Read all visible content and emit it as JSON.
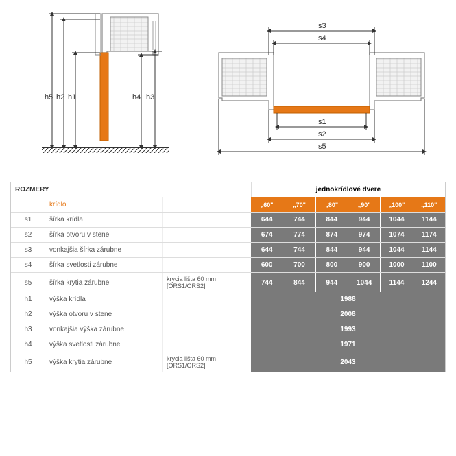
{
  "colors": {
    "accent": "#e67817",
    "darkcell": "#7a7a7a",
    "line": "#333333",
    "wall_fill": "#f2f2f2",
    "profile_stroke": "#888888"
  },
  "header": {
    "rozmery": "ROZMERY",
    "right": "jednokrídlové dvere",
    "kridlo": "krídlo"
  },
  "sizes": [
    "„60\"",
    "„70\"",
    "„80\"",
    "„90\"",
    "„100\"",
    "„110\""
  ],
  "rows_s": [
    {
      "id": "s1",
      "label": "šírka krídla",
      "note": "",
      "vals": [
        "644",
        "744",
        "844",
        "944",
        "1044",
        "1144"
      ]
    },
    {
      "id": "s2",
      "label": "šírka otvoru v stene",
      "note": "",
      "vals": [
        "674",
        "774",
        "874",
        "974",
        "1074",
        "1174"
      ]
    },
    {
      "id": "s3",
      "label": "vonkajšia šírka zárubne",
      "note": "",
      "vals": [
        "644",
        "744",
        "844",
        "944",
        "1044",
        "1144"
      ]
    },
    {
      "id": "s4",
      "label": "šírka svetlosti zárubne",
      "note": "",
      "vals": [
        "600",
        "700",
        "800",
        "900",
        "1000",
        "1100"
      ]
    },
    {
      "id": "s5",
      "label": "šírka krytia zárubne",
      "note": "krycia lišta 60 mm [ORS1/ORS2]",
      "vals": [
        "744",
        "844",
        "944",
        "1044",
        "1144",
        "1244"
      ]
    }
  ],
  "rows_h": [
    {
      "id": "h1",
      "label": "výška krídla",
      "note": "",
      "val": "1988"
    },
    {
      "id": "h2",
      "label": "výška otvoru v stene",
      "note": "",
      "val": "2008"
    },
    {
      "id": "h3",
      "label": "vonkajšia výška zárubne",
      "note": "",
      "val": "1993"
    },
    {
      "id": "h4",
      "label": "výška svetlosti zárubne",
      "note": "",
      "val": "1971"
    },
    {
      "id": "h5",
      "label": "výška krytia zárubne",
      "note": "krycia lišta 60 mm [ORS1/ORS2]",
      "val": "2043"
    }
  ],
  "diagram": {
    "h_labels": [
      "h5",
      "h2",
      "h1",
      "h4",
      "h3"
    ],
    "s_labels": [
      "s3",
      "s4",
      "s1",
      "s2",
      "s5"
    ]
  }
}
